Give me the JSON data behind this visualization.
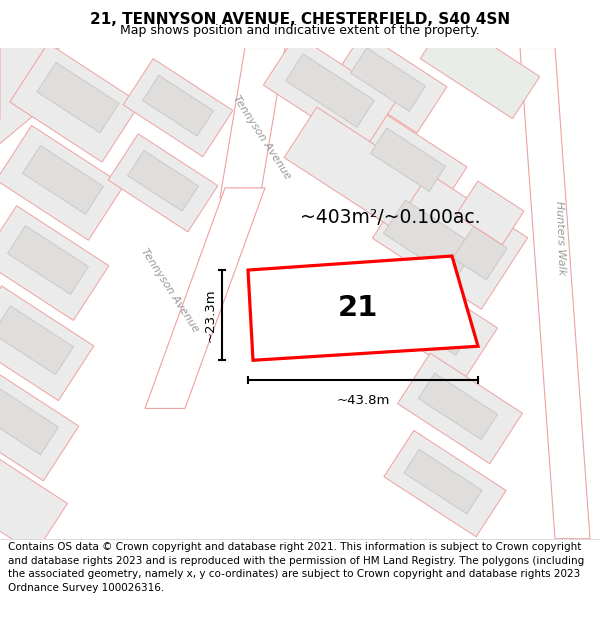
{
  "title": "21, TENNYSON AVENUE, CHESTERFIELD, S40 4SN",
  "subtitle": "Map shows position and indicative extent of the property.",
  "footer": "Contains OS data © Crown copyright and database right 2021. This information is subject to Crown copyright and database rights 2023 and is reproduced with the permission of HM Land Registry. The polygons (including the associated geometry, namely x, y co-ordinates) are subject to Crown copyright and database rights 2023 Ordnance Survey 100026316.",
  "area_label": "~403m²/~0.100ac.",
  "width_label": "~43.8m",
  "height_label": "~23.3m",
  "plot_number": "21",
  "map_bg": "#f2f0ed",
  "parcel_fill": "#ebebeb",
  "parcel_edge": "#f0a0a0",
  "building_fill": "#e0dedd",
  "building_edge": "#c8c4c0",
  "green_fill": "#e8ede8",
  "highlight_color": "#ff0000",
  "title_fontsize": 11,
  "subtitle_fontsize": 9,
  "footer_fontsize": 7.5,
  "road_label_color": "#999999",
  "road_label_size": 8
}
